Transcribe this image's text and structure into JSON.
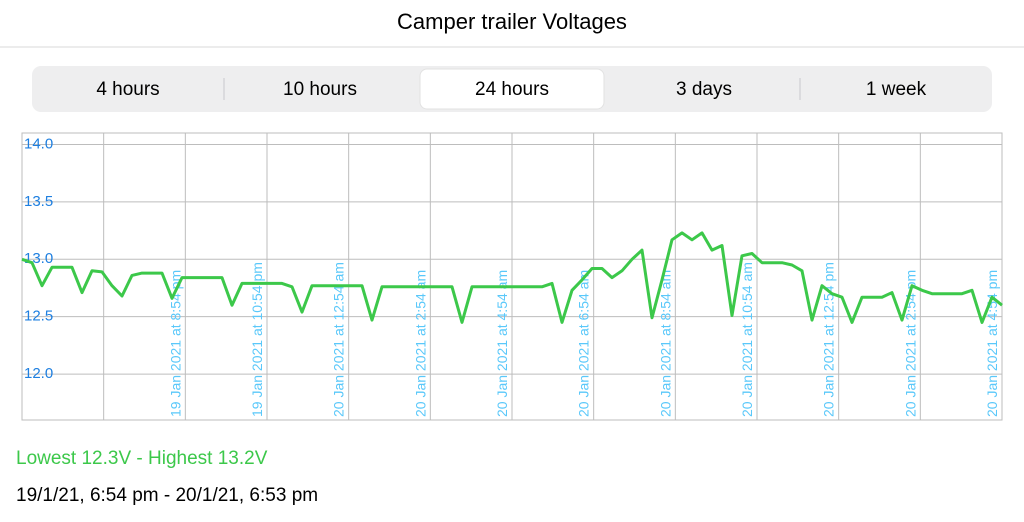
{
  "header": {
    "title": "Camper trailer Voltages"
  },
  "tabs": {
    "items": [
      "4 hours",
      "10 hours",
      "24 hours",
      "3 days",
      "1 week"
    ],
    "selected": 2
  },
  "chart_data": {
    "type": "line",
    "series": [
      {
        "color": "#3cc84a",
        "values": [
          13.0,
          12.97,
          12.77,
          12.93,
          12.93,
          12.93,
          12.71,
          12.9,
          12.89,
          12.77,
          12.68,
          12.86,
          12.88,
          12.88,
          12.88,
          12.66,
          12.84,
          12.84,
          12.84,
          12.84,
          12.84,
          12.6,
          12.79,
          12.79,
          12.79,
          12.79,
          12.79,
          12.76,
          12.54,
          12.77,
          12.77,
          12.77,
          12.77,
          12.77,
          12.77,
          12.47,
          12.76,
          12.76,
          12.76,
          12.76,
          12.76,
          12.76,
          12.76,
          12.76,
          12.45,
          12.76,
          12.76,
          12.76,
          12.76,
          12.76,
          12.76,
          12.76,
          12.76,
          12.79,
          12.45,
          12.73,
          12.82,
          12.92,
          12.92,
          12.84,
          12.9,
          13.0,
          13.08,
          12.49,
          12.82,
          13.17,
          13.23,
          13.17,
          13.23,
          13.08,
          13.12,
          12.51,
          13.03,
          13.05,
          12.97,
          12.97,
          12.97,
          12.95,
          12.9,
          12.47,
          12.77,
          12.7,
          12.67,
          12.45,
          12.67,
          12.67,
          12.67,
          12.71,
          12.47,
          12.77,
          12.73,
          12.7,
          12.7,
          12.7,
          12.7,
          12.73,
          12.45,
          12.67,
          12.6
        ]
      }
    ],
    "ylim": [
      11.6,
      14.1
    ],
    "yticks": [
      {
        "value": 14,
        "label": "14.0"
      },
      13.5,
      {
        "value": 13,
        "label": "13.0"
      },
      12.5,
      {
        "value": 12,
        "label": "12.0"
      }
    ],
    "xtick_labels": [
      "19 Jan 2021 at 8:54 pm",
      "19 Jan 2021 at 10:54 pm",
      "20 Jan 2021 at 12:54 am",
      "20 Jan 2021 at 2:54 am",
      "20 Jan 2021 at 4:54 am",
      "20 Jan 2021 at 6:54 am",
      "20 Jan 2021 at 8:54 am",
      "20 Jan 2021 at 10:54 am",
      "20 Jan 2021 at 12:54 pm",
      "20 Jan 2021 at 2:54 pm",
      "20 Jan 2021 at 4:54 pm"
    ],
    "grid": true
  },
  "summary": {
    "range": "Lowest 12.3V - Highest 13.2V",
    "period": "19/1/21, 6:54 pm - 20/1/21, 6:53 pm"
  }
}
